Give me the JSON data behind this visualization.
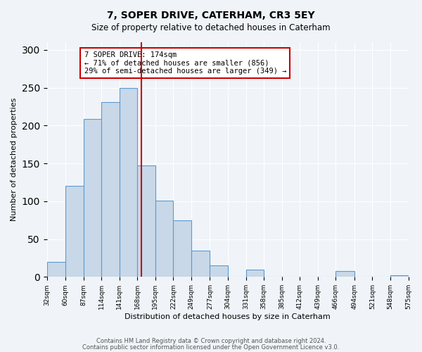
{
  "title": "7, SOPER DRIVE, CATERHAM, CR3 5EY",
  "subtitle": "Size of property relative to detached houses in Caterham",
  "xlabel": "Distribution of detached houses by size in Caterham",
  "ylabel": "Number of detached properties",
  "bar_color": "#c8d8e8",
  "bar_edge_color": "#5b9bd5",
  "vline_value": 174,
  "vline_color": "#cc0000",
  "annotation_title": "7 SOPER DRIVE: 174sqm",
  "annotation_line1": "← 71% of detached houses are smaller (856)",
  "annotation_line2": "29% of semi-detached houses are larger (349) →",
  "annotation_box_edge_color": "#cc0000",
  "bins": [
    32,
    60,
    87,
    114,
    141,
    168,
    195,
    222,
    249,
    277,
    304,
    331,
    358,
    385,
    412,
    439,
    466,
    494,
    521,
    548,
    575
  ],
  "heights": [
    20,
    120,
    209,
    231,
    250,
    147,
    101,
    75,
    35,
    15,
    0,
    10,
    0,
    0,
    0,
    0,
    8,
    0,
    0,
    2
  ],
  "xlim_left": 32,
  "xlim_right": 575,
  "ylim_top": 310,
  "yticks": [
    0,
    50,
    100,
    150,
    200,
    250,
    300
  ],
  "footer_line1": "Contains HM Land Registry data © Crown copyright and database right 2024.",
  "footer_line2": "Contains public sector information licensed under the Open Government Licence v3.0.",
  "bg_color": "#f0f4f8",
  "plot_bg_color": "#f0f4f8"
}
